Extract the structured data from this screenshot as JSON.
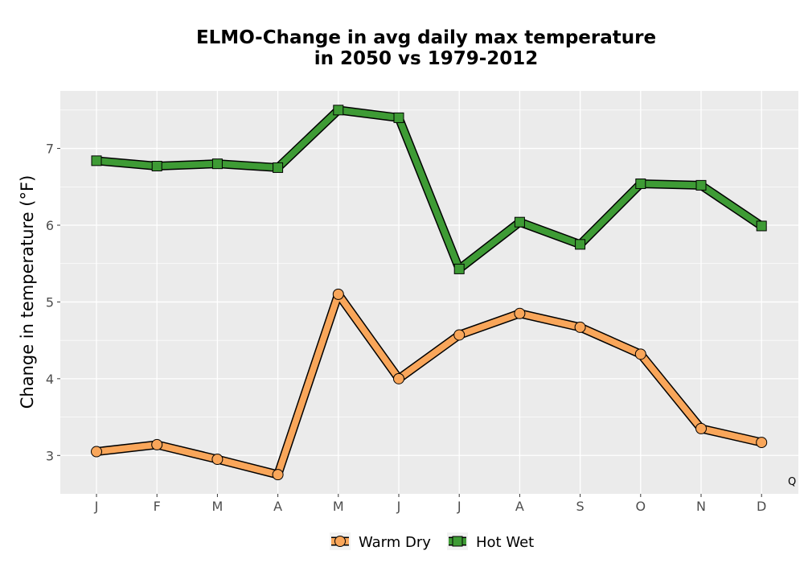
{
  "chart_data": {
    "type": "line",
    "title_line1": "ELMO-Change in avg daily max temperature",
    "title_line2": "in 2050 vs 1979-2012",
    "xlabel": "",
    "ylabel": "Change in temperature (°F)",
    "categories": [
      "J",
      "F",
      "M",
      "A",
      "M",
      "J",
      "J",
      "A",
      "S",
      "O",
      "N",
      "D"
    ],
    "ylim": [
      2.5,
      7.75
    ],
    "yticks": [
      3,
      4,
      5,
      6,
      7
    ],
    "grid": true,
    "legend_position": "bottom",
    "annotation": "Q",
    "series": [
      {
        "name": "Warm Dry",
        "marker": "circle",
        "color": "#F9A65A",
        "values": [
          3.05,
          3.14,
          2.95,
          2.75,
          5.1,
          4.0,
          4.57,
          4.85,
          4.67,
          4.32,
          3.35,
          3.17
        ]
      },
      {
        "name": "Hot Wet",
        "marker": "square",
        "color": "#3E9B35",
        "values": [
          6.84,
          6.77,
          6.8,
          6.75,
          7.5,
          7.4,
          5.43,
          6.04,
          5.75,
          6.54,
          6.52,
          5.99
        ]
      }
    ]
  }
}
